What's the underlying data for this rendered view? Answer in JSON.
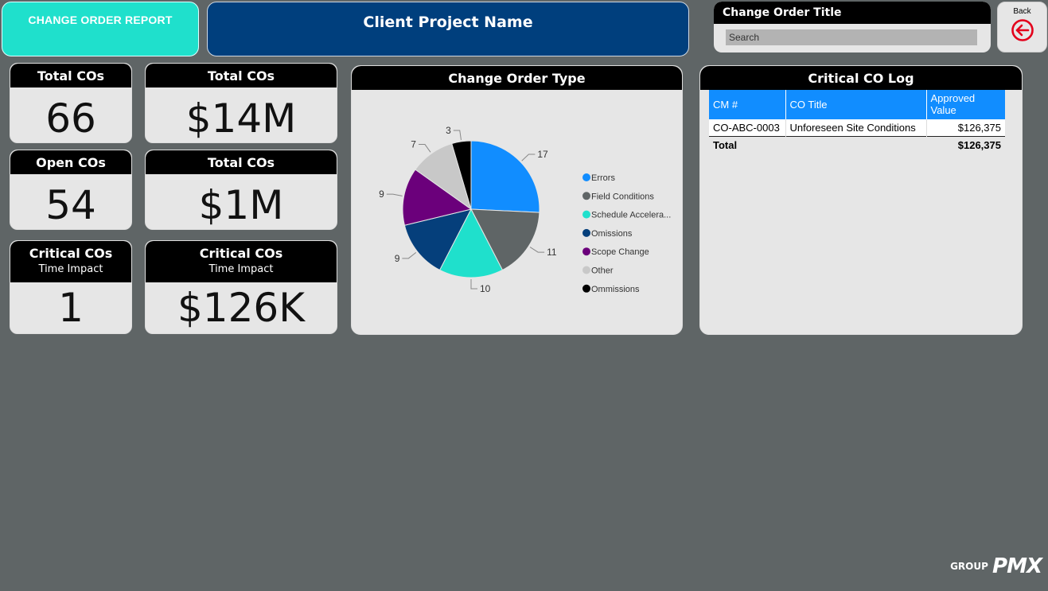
{
  "header": {
    "report_button": "CHANGE ORDER REPORT",
    "project_title": "Client Project Name"
  },
  "search": {
    "title": "Change Order Title",
    "placeholder": "Search"
  },
  "back": {
    "label": "Back",
    "icon": "arrow-left-circle-icon",
    "color": "#e3001b"
  },
  "kpis": {
    "total_cos_count": {
      "title": "Total COs",
      "value": "66"
    },
    "total_cos_value": {
      "title": "Total COs",
      "value": "$14M"
    },
    "open_cos_count": {
      "title": "Open COs",
      "value": "54"
    },
    "open_cos_value": {
      "title": "Total COs",
      "value": "$1M"
    },
    "critical_cos_count": {
      "title": "Critical COs",
      "subtitle": "Time Impact",
      "value": "1"
    },
    "critical_cos_value": {
      "title": "Critical COs",
      "subtitle": "Time Impact",
      "value": "$126K"
    }
  },
  "pie_panel": {
    "title": "Change Order Type"
  },
  "chart_data": {
    "type": "pie",
    "title": "Change Order Type",
    "legend_position": "right",
    "slices": [
      {
        "name": "Errors",
        "value": 17,
        "color": "#118dff"
      },
      {
        "name": "Field Conditions",
        "value": 11,
        "color": "#5f6566"
      },
      {
        "name": "Schedule Accelera...",
        "value": 10,
        "color": "#1fe0cc"
      },
      {
        "name": "Omissions",
        "value": 9,
        "color": "#053f7b"
      },
      {
        "name": "Scope Change",
        "value": 9,
        "color": "#6b007b"
      },
      {
        "name": "Other",
        "value": 7,
        "color": "#c8c8c8"
      },
      {
        "name": "Ommissions",
        "value": 3,
        "color": "#000000"
      }
    ]
  },
  "log": {
    "title": "Critical CO Log",
    "columns": [
      "CM #",
      "CO Title",
      "Approved Value"
    ],
    "rows": [
      [
        "CO-ABC-0003",
        "Unforeseen Site Conditions",
        "$126,375"
      ]
    ],
    "total_label": "Total",
    "total_value": "$126,375"
  },
  "brand": {
    "group": "GROUP",
    "name": "PMX"
  }
}
